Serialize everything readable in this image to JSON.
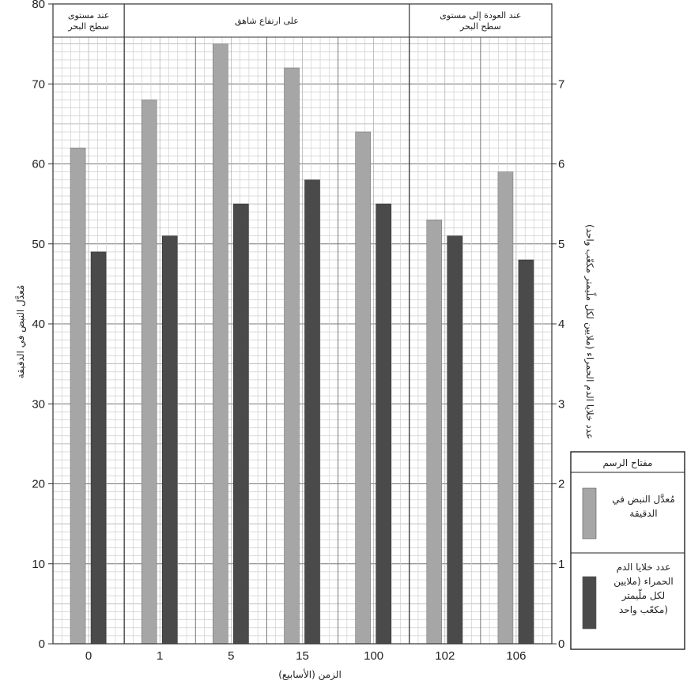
{
  "chart_data": {
    "type": "bar",
    "xlabel": "الزمن (الأسابيع)",
    "ylabel": "مُعدَّل النبض في الدقيقة",
    "y2label": "عدد خلايا الدم الحمراء (ملايين لكل ملّيمتر مكعّب واحد)",
    "ylim": [
      0,
      80
    ],
    "y2lim": [
      0,
      8
    ],
    "yticks": [
      "0",
      "10",
      "20",
      "30",
      "40",
      "50",
      "60",
      "70",
      "80"
    ],
    "y2ticks": [
      "0",
      "1",
      "2",
      "3",
      "4",
      "5",
      "6",
      "7"
    ],
    "categories": [
      "0",
      "1",
      "5",
      "15",
      "100",
      "102",
      "106"
    ],
    "series": [
      {
        "name": "مُعدَّل النبض في الدقيقة",
        "axis": "left",
        "color": "#a6a6a6",
        "values": [
          62,
          68,
          75,
          72,
          64,
          53,
          59
        ]
      },
      {
        "name": "عدد خلايا الدم الحمراء (ملايين لكل ملّيمتر مكعّب واحد)",
        "axis": "right",
        "color": "#4a4a4a",
        "values": [
          4.9,
          5.1,
          5.5,
          5.8,
          5.5,
          5.1,
          4.8
        ]
      }
    ],
    "periods": [
      {
        "label_lines": [
          "عند مستوى",
          "سطح البحر"
        ],
        "from_cat": 0,
        "to_cat": 0
      },
      {
        "label_lines": [
          "على ارتفاع شاهق"
        ],
        "from_cat": 1,
        "to_cat": 4
      },
      {
        "label_lines": [
          "عند العودة إلى مستوى",
          "سطح البحر"
        ],
        "from_cat": 5,
        "to_cat": 6
      }
    ],
    "legend": {
      "title": "مفتاح الرسم",
      "placement": "bottom-right",
      "items": [
        {
          "label_lines": [
            "مُعدَّل النبض في",
            "الدقيقة"
          ]
        },
        {
          "label_lines": [
            "عدد خلايا الدم",
            "الحمراء (ملايين",
            "لكل ملّيمتر",
            "مكعّب واحد)"
          ]
        }
      ]
    },
    "grid": true
  }
}
